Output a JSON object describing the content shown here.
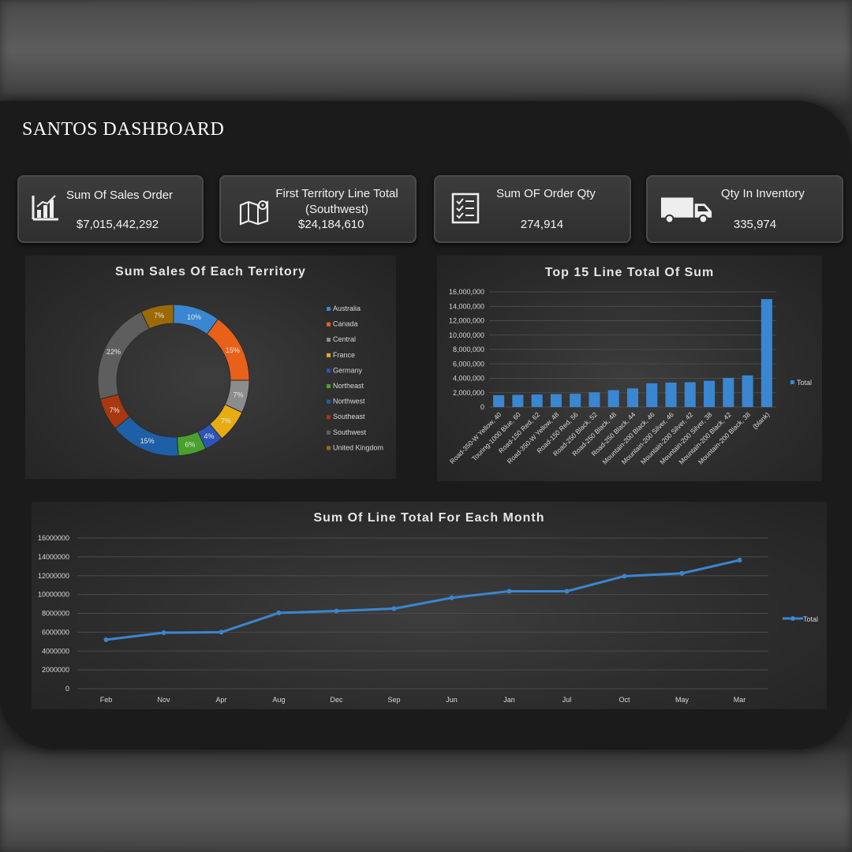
{
  "header": {
    "title": "SANTOS DASHBOARD"
  },
  "kpis": [
    {
      "label": "Sum Of Sales Order",
      "value": "$7,015,442,292",
      "icon": "bar-chart-icon"
    },
    {
      "label": "First Territory Line Total (Southwest)",
      "label_line1": "First Territory Line Total",
      "label_line2": "(Southwest)",
      "value": "$24,184,610",
      "icon": "map-pin-icon"
    },
    {
      "label": "Sum OF Order Qty",
      "value": "274,914",
      "icon": "checklist-icon"
    },
    {
      "label": "Qty In Inventory",
      "value": "335,974",
      "icon": "truck-icon"
    }
  ],
  "donut": {
    "title": "Sum Sales Of Each  Territory",
    "chart_data": {
      "type": "pie",
      "title": "Sum Sales Of Each  Territory",
      "legend_position": "right",
      "slices": [
        {
          "name": "Australia",
          "percent": 10,
          "label": "10%",
          "color": "#3a86d0"
        },
        {
          "name": "Canada",
          "percent": 15,
          "label": "15%",
          "color": "#e8611a"
        },
        {
          "name": "Central",
          "percent": 7,
          "label": "7%",
          "color": "#8c8c8c"
        },
        {
          "name": "France",
          "percent": 7,
          "label": "7%",
          "color": "#e6ac12"
        },
        {
          "name": "Germany",
          "percent": 4,
          "label": "4%",
          "color": "#2d55b8"
        },
        {
          "name": "Northeast",
          "percent": 6,
          "label": "6%",
          "color": "#4aa02c"
        },
        {
          "name": "Northwest",
          "percent": 15,
          "label": "15%",
          "color": "#1f5fa8"
        },
        {
          "name": "Southeast",
          "percent": 7,
          "label": "7%",
          "color": "#a8380f"
        },
        {
          "name": "Southwest",
          "percent": 22,
          "label": "22%",
          "color": "#5e5e5e"
        },
        {
          "name": "United Kingdom",
          "percent": 7,
          "label": "7%",
          "color": "#9a6a06"
        }
      ]
    }
  },
  "bar": {
    "title": "Top 15 Line Total Of Sum",
    "chart_data": {
      "type": "bar",
      "title": "Top 15 Line Total Of Sum",
      "categories": [
        "Road-350-W Yellow, 40",
        "Touring-1000 Blue, 60",
        "Road-150 Red, 62",
        "Road-350-W Yellow, 48",
        "Road-150 Red, 56",
        "Road-250 Black, 52",
        "Road-250 Black, 48",
        "Road-250 Black, 44",
        "Mountain-200 Black, 46",
        "Mountain-200 Silver, 46",
        "Mountain-200 Silver, 42",
        "Mountain-200 Silver, 38",
        "Mountain-200 Black, 42",
        "Mountain-200 Black, 38",
        "(blank)"
      ],
      "series": [
        {
          "name": "Total",
          "values": [
            1650000,
            1700000,
            1750000,
            1800000,
            1850000,
            2050000,
            2350000,
            2600000,
            3300000,
            3400000,
            3450000,
            3650000,
            4050000,
            4400000,
            15000000
          ]
        }
      ],
      "yticks": [
        "0",
        "2,000,000",
        "4,000,000",
        "6,000,000",
        "8,000,000",
        "10,000,000",
        "12,000,000",
        "14,000,000",
        "16,000,000"
      ],
      "ylim": [
        0,
        16000000
      ],
      "grid": true,
      "legend_position": "right",
      "color": "#3a86d0"
    }
  },
  "line": {
    "title": "Sum Of Line Total For Each Month",
    "chart_data": {
      "type": "line",
      "title": "Sum Of Line Total For Each Month",
      "categories": [
        "Feb",
        "Nov",
        "Apr",
        "Aug",
        "Dec",
        "Sep",
        "Jun",
        "Jan",
        "Jul",
        "Oct",
        "May",
        "Mar"
      ],
      "series": [
        {
          "name": "Total",
          "values": [
            5200000,
            5950000,
            6000000,
            8050000,
            8250000,
            8500000,
            9650000,
            10350000,
            10350000,
            11950000,
            12250000,
            13650000
          ]
        }
      ],
      "yticks": [
        "0",
        "2000000",
        "4000000",
        "6000000",
        "8000000",
        "10000000",
        "12000000",
        "14000000",
        "16000000"
      ],
      "ylim": [
        0,
        16000000
      ],
      "grid": true,
      "legend_position": "right",
      "color": "#3a86d0"
    }
  }
}
